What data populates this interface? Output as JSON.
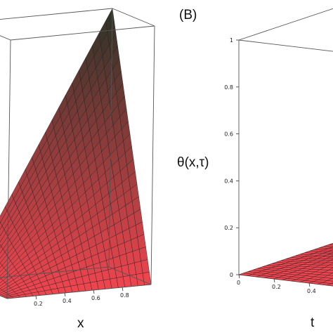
{
  "panel_b_label": "(B)",
  "chart_data": [
    {
      "type": "surface",
      "panel": "",
      "title": "",
      "xlabel": "x",
      "ylabel": "",
      "zlabel": "",
      "x_ticks": [
        "0.2",
        "0.4",
        "0.6",
        "0.8"
      ],
      "xlim": [
        0,
        1
      ],
      "zlim": [
        0,
        1
      ],
      "surface_model": "theta = x * tau (plane rising to 1 at x=1)",
      "colors": {
        "low": "#f0454f",
        "high": "#2a3327"
      }
    },
    {
      "type": "surface",
      "panel": "(B)",
      "title": "",
      "xlabel": "",
      "ylabel": "t",
      "zlabel": "θ(x,τ)",
      "z_ticks": [
        "0",
        "0.2",
        "0.4",
        "0.6",
        "0.8",
        "1"
      ],
      "x_ticks": [
        "0",
        "0.2",
        "0.4"
      ],
      "xlim": [
        0,
        1
      ],
      "zlim": [
        0,
        1
      ],
      "surface_model": "theta = x^2 * tau^2",
      "colors": {
        "low": "#f0454f",
        "high": "#2a3327"
      }
    }
  ]
}
